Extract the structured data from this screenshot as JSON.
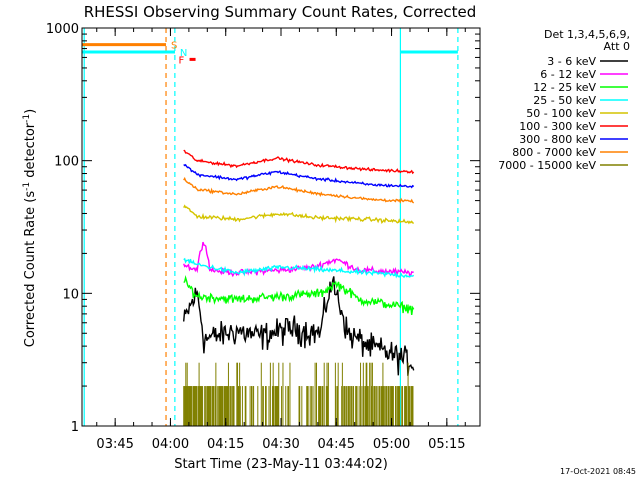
{
  "chart_data": {
    "type": "line",
    "title": "RHESSI Observing Summary Count Rates, Corrected",
    "xlabel": "Start Time (23-May-11 03:44:02)",
    "ylabel": "Corrected Count Rate (s",
    "ylabel_sup1": "-1",
    "ylabel_mid": " detector",
    "ylabel_sup2": "-1",
    "ylabel_end": ")",
    "xlim": [
      3.6,
      5.4
    ],
    "ylim": [
      1,
      1000
    ],
    "yscale": "log",
    "x_ticks": [
      {
        "value": 3.75,
        "label": "03:45"
      },
      {
        "value": 4.0,
        "label": "04:00"
      },
      {
        "value": 4.25,
        "label": "04:15"
      },
      {
        "value": 4.5,
        "label": "04:30"
      },
      {
        "value": 4.75,
        "label": "04:45"
      },
      {
        "value": 5.0,
        "label": "05:00"
      },
      {
        "value": 5.25,
        "label": "05:15"
      }
    ],
    "y_ticks": [
      {
        "value": 1,
        "label": "1"
      },
      {
        "value": 10,
        "label": "10"
      },
      {
        "value": 100,
        "label": "100"
      },
      {
        "value": 1000,
        "label": "1000"
      }
    ],
    "data_start": 4.06,
    "data_end": 5.1,
    "legend_header": [
      "Det 1,3,4,5,6,9,",
      "Att 0"
    ],
    "series": [
      {
        "name": "3 - 6 keV",
        "color": "#000000",
        "base": 5.0,
        "noise": 0.35,
        "profile": [
          [
            4.06,
            1.2
          ],
          [
            4.12,
            2.0
          ],
          [
            4.15,
            0.9
          ],
          [
            4.3,
            1.05
          ],
          [
            4.4,
            0.95
          ],
          [
            4.55,
            1.1
          ],
          [
            4.68,
            1.0
          ],
          [
            4.73,
            2.4
          ],
          [
            4.8,
            1.0
          ],
          [
            4.9,
            0.8
          ],
          [
            5.1,
            0.6
          ]
        ]
      },
      {
        "name": "6 - 12 keV",
        "color": "#ff00ff",
        "base": 15,
        "noise": 0.08,
        "profile": [
          [
            4.06,
            1.1
          ],
          [
            4.12,
            1.0
          ],
          [
            4.15,
            1.7
          ],
          [
            4.18,
            1.0
          ],
          [
            4.3,
            0.95
          ],
          [
            4.5,
            1.0
          ],
          [
            4.65,
            1.05
          ],
          [
            4.75,
            1.2
          ],
          [
            4.85,
            1.0
          ],
          [
            5.1,
            0.95
          ]
        ]
      },
      {
        "name": "12 - 25 keV",
        "color": "#00ff00",
        "base": 9.5,
        "noise": 0.12,
        "profile": [
          [
            4.06,
            1.3
          ],
          [
            4.12,
            1.0
          ],
          [
            4.3,
            0.95
          ],
          [
            4.5,
            1.0
          ],
          [
            4.68,
            1.05
          ],
          [
            4.75,
            1.25
          ],
          [
            4.85,
            0.95
          ],
          [
            5.1,
            0.8
          ]
        ]
      },
      {
        "name": "25 - 50 keV",
        "color": "#00ffff",
        "base": 15,
        "noise": 0.06,
        "profile": [
          [
            4.06,
            1.2
          ],
          [
            4.12,
            1.1
          ],
          [
            4.3,
            0.95
          ],
          [
            4.5,
            1.05
          ],
          [
            4.7,
            1.0
          ],
          [
            4.9,
            0.95
          ],
          [
            5.1,
            0.9
          ]
        ]
      },
      {
        "name": "50 - 100 keV",
        "color": "#d4c400",
        "base": 38,
        "noise": 0.05,
        "profile": [
          [
            4.06,
            1.2
          ],
          [
            4.12,
            1.0
          ],
          [
            4.3,
            0.95
          ],
          [
            4.5,
            1.05
          ],
          [
            4.65,
            0.98
          ],
          [
            4.9,
            0.95
          ],
          [
            5.1,
            0.9
          ]
        ]
      },
      {
        "name": "100 - 300 keV",
        "color": "#ff0000",
        "base": 95,
        "noise": 0.035,
        "profile": [
          [
            4.06,
            1.25
          ],
          [
            4.12,
            1.05
          ],
          [
            4.3,
            0.96
          ],
          [
            4.48,
            1.1
          ],
          [
            4.65,
            0.98
          ],
          [
            4.9,
            0.9
          ],
          [
            5.1,
            0.87
          ]
        ]
      },
      {
        "name": "300 - 800 keV",
        "color": "#0000ff",
        "base": 75,
        "noise": 0.035,
        "profile": [
          [
            4.06,
            1.25
          ],
          [
            4.12,
            1.05
          ],
          [
            4.3,
            0.96
          ],
          [
            4.48,
            1.1
          ],
          [
            4.65,
            0.98
          ],
          [
            4.9,
            0.88
          ],
          [
            5.1,
            0.85
          ]
        ]
      },
      {
        "name": "800 - 7000 keV",
        "color": "#ff8000",
        "base": 58,
        "noise": 0.035,
        "profile": [
          [
            4.06,
            1.25
          ],
          [
            4.12,
            1.05
          ],
          [
            4.3,
            0.96
          ],
          [
            4.48,
            1.1
          ],
          [
            4.65,
            0.98
          ],
          [
            4.9,
            0.88
          ],
          [
            5.1,
            0.85
          ]
        ]
      },
      {
        "name": "7000 - 15000 keV",
        "color": "#808000",
        "base": 1.9,
        "noise": 0.0,
        "profile": [
          [
            4.06,
            1.0
          ],
          [
            5.1,
            1.0
          ]
        ]
      }
    ],
    "flag_lines": [
      {
        "label": "S",
        "color": "#ff8000",
        "y": 750,
        "x_end": 3.98
      },
      {
        "label": "N",
        "color": "#00ffff",
        "y": 660,
        "x_end": 4.02
      }
    ],
    "flag_marker": {
      "label": "F",
      "color": "#ff0000",
      "x": 4.1,
      "y": 580
    },
    "vertical_lines": [
      {
        "x": 3.61,
        "color": "#00ffff",
        "style": "solid"
      },
      {
        "x": 3.98,
        "color": "#ff8000",
        "style": "dashed"
      },
      {
        "x": 4.02,
        "color": "#00ffff",
        "style": "dashed"
      },
      {
        "x": 5.04,
        "color": "#00ffff",
        "style": "solid"
      },
      {
        "x": 5.3,
        "color": "#00ffff",
        "style": "dashed"
      }
    ],
    "top_cyan_segments": [
      [
        3.61,
        4.02
      ],
      [
        5.04,
        5.3
      ]
    ],
    "footer_date": "17-Oct-2021 08:45"
  }
}
